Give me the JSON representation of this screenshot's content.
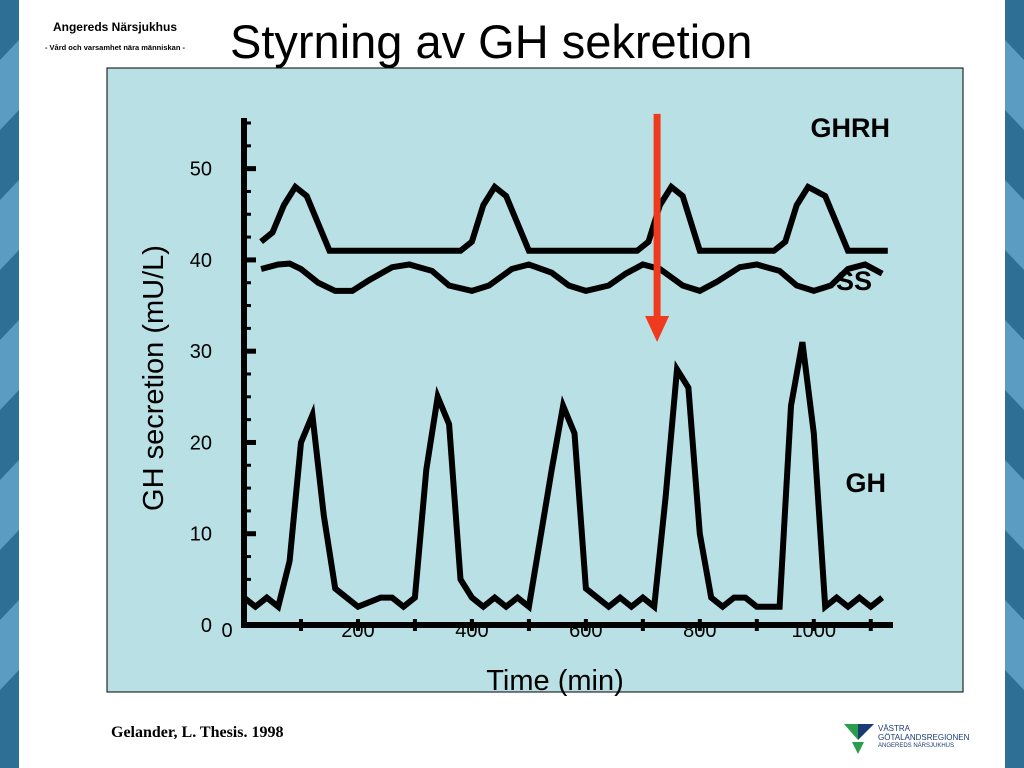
{
  "header": {
    "hospital_name": "Angereds Närsjukhus",
    "tagline": "- Vård och varsamhet nära människan -",
    "title": "Styrning av GH sekretion"
  },
  "footer": {
    "citation": "Gelander, L. Thesis. 1998",
    "logo_line1": "VÄSTRA",
    "logo_line2": "GÖTALANDSREGIONEN",
    "logo_line3": "ANGEREDS NÄRSJUKHUS"
  },
  "colors": {
    "panel": "#b9e0e5",
    "line": "#000000",
    "arrow": "#f03a1e",
    "side_band": "#2d6f95",
    "logo_green": "#2a9d4a",
    "logo_blue": "#1b3b73"
  },
  "chart_data": {
    "type": "line",
    "xlabel": "Time (min)",
    "ylabel": "GH secretion (mU/L)",
    "xlim": [
      0,
      1125
    ],
    "ylim": [
      0,
      55
    ],
    "x_tick_labels": [
      "0",
      "200",
      "400",
      "600",
      "800",
      "1000"
    ],
    "x_ticks": [
      0,
      200,
      400,
      600,
      800,
      1000
    ],
    "y_tick_labels": [
      "0",
      "10",
      "20",
      "30",
      "40",
      "50"
    ],
    "y_ticks": [
      0,
      10,
      20,
      30,
      40,
      50
    ],
    "grid": false,
    "series": [
      {
        "name": "GHRH",
        "x": [
          30,
          50,
          70,
          90,
          110,
          150,
          200,
          250,
          300,
          350,
          380,
          400,
          420,
          440,
          460,
          500,
          550,
          600,
          650,
          690,
          710,
          730,
          750,
          770,
          800,
          850,
          900,
          930,
          950,
          970,
          990,
          1020,
          1060,
          1130
        ],
        "y": [
          42,
          43,
          46,
          48,
          47,
          41,
          41,
          41,
          41,
          41,
          41,
          42,
          46,
          48,
          47,
          41,
          41,
          41,
          41,
          41,
          42,
          46,
          48,
          47,
          41,
          41,
          41,
          41,
          42,
          46,
          48,
          47,
          41,
          41
        ]
      },
      {
        "name": "SS",
        "x": [
          30,
          60,
          80,
          100,
          130,
          160,
          190,
          220,
          260,
          290,
          330,
          360,
          400,
          430,
          470,
          500,
          540,
          570,
          600,
          640,
          670,
          700,
          730,
          770,
          800,
          830,
          870,
          900,
          940,
          970,
          1000,
          1030,
          1060,
          1090,
          1120
        ],
        "y": [
          39,
          39.5,
          39.6,
          39,
          37.5,
          36.6,
          36.6,
          37.8,
          39.2,
          39.5,
          38.8,
          37.2,
          36.6,
          37.2,
          39,
          39.5,
          38.6,
          37.2,
          36.6,
          37.2,
          38.5,
          39.5,
          39,
          37.2,
          36.6,
          37.6,
          39.2,
          39.5,
          38.8,
          37.2,
          36.6,
          37.2,
          39,
          39.5,
          38.5
        ]
      },
      {
        "name": "GH",
        "x": [
          0,
          20,
          40,
          60,
          80,
          100,
          120,
          140,
          160,
          180,
          200,
          240,
          260,
          280,
          300,
          320,
          340,
          360,
          380,
          400,
          420,
          440,
          460,
          480,
          500,
          540,
          560,
          580,
          600,
          620,
          640,
          660,
          680,
          700,
          720,
          740,
          760,
          780,
          800,
          820,
          840,
          860,
          880,
          900,
          920,
          940,
          960,
          980,
          1000,
          1020,
          1040,
          1060,
          1080,
          1100,
          1120
        ],
        "y": [
          3,
          2,
          3,
          2,
          7,
          20,
          23,
          12,
          4,
          3,
          2,
          3,
          3,
          2,
          3,
          17,
          25,
          22,
          5,
          3,
          2,
          3,
          2,
          3,
          2,
          17,
          24,
          21,
          4,
          3,
          2,
          3,
          2,
          3,
          2,
          14,
          28,
          26,
          10,
          3,
          2,
          3,
          3,
          2,
          2,
          2,
          24,
          31,
          21,
          2,
          3,
          2,
          3,
          2,
          3
        ]
      }
    ],
    "annotations": [
      {
        "type": "arrow",
        "x": 725,
        "y_from": 56,
        "y_to": 31,
        "label": ""
      }
    ]
  }
}
